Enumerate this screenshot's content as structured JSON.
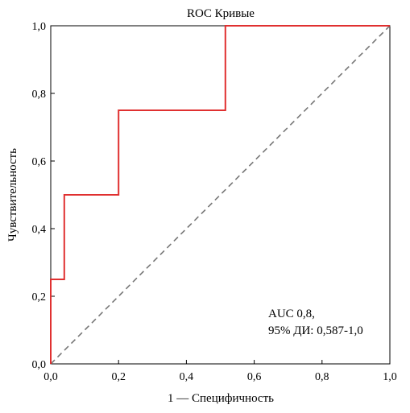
{
  "chart_data": {
    "type": "line",
    "title": "ROC Кривые",
    "xlabel": "1 — Специфичность",
    "ylabel": "Чувствительность",
    "xlim": [
      0,
      1
    ],
    "ylim": [
      0,
      1
    ],
    "x_ticks": [
      "0,0",
      "0,2",
      "0,4",
      "0,6",
      "0,8",
      "1,0"
    ],
    "y_ticks": [
      "0,0",
      "0,2",
      "0,4",
      "0,6",
      "0,8",
      "1,0"
    ],
    "grid": false,
    "series": [
      {
        "style": "solid",
        "color": "#e03030",
        "x": [
          0,
          0,
          0.04,
          0.04,
          0.2,
          0.2,
          0.515,
          0.515,
          1.0
        ],
        "y": [
          0,
          0.25,
          0.25,
          0.5,
          0.5,
          0.75,
          0.75,
          1.0,
          1.0
        ]
      },
      {
        "style": "dashed",
        "color": "#777777",
        "x": [
          0,
          1
        ],
        "y": [
          0,
          1
        ]
      }
    ],
    "annotation": {
      "line1": "AUC 0,8,",
      "line2": "95% ДИ: 0,587-1,0"
    }
  }
}
